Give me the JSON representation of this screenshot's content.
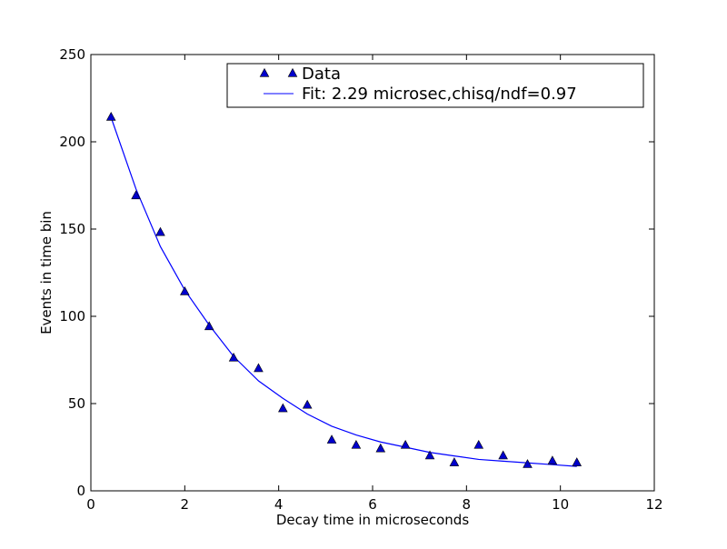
{
  "chart_data": {
    "type": "scatter",
    "title": "",
    "xlabel": "Decay time in microseconds",
    "ylabel": "Events in time bin",
    "xlim": [
      0,
      12
    ],
    "ylim": [
      0,
      250
    ],
    "xticks": [
      "0",
      "2",
      "4",
      "6",
      "8",
      "10",
      "12"
    ],
    "yticks": [
      "0",
      "50",
      "100",
      "150",
      "200",
      "250"
    ],
    "grid": false,
    "legend_position": "top-right",
    "series": [
      {
        "name": "Data",
        "kind": "markers",
        "marker": "triangle",
        "color": "#0000cc",
        "x": [
          0.43,
          0.96,
          1.48,
          2.0,
          2.52,
          3.04,
          3.57,
          4.09,
          4.61,
          5.13,
          5.65,
          6.17,
          6.7,
          7.22,
          7.74,
          8.26,
          8.78,
          9.3,
          9.83,
          10.35
        ],
        "y": [
          214,
          169,
          148,
          114,
          94,
          76,
          70,
          47,
          49,
          29,
          26,
          24,
          26,
          20,
          16,
          26,
          20,
          15,
          17,
          16
        ]
      },
      {
        "name": "Fit: 2.29 microsec,chisq/ndf=0.97",
        "kind": "line",
        "color": "#0000ff",
        "x": [
          0.43,
          0.96,
          1.48,
          2.0,
          2.52,
          3.04,
          3.57,
          4.09,
          4.61,
          5.13,
          5.65,
          6.17,
          6.7,
          7.22,
          7.74,
          8.26,
          8.78,
          9.3,
          9.83,
          10.35
        ],
        "y": [
          214,
          173,
          140,
          115,
          95,
          77,
          63,
          53,
          44,
          37,
          32,
          28,
          25,
          22,
          20,
          18,
          17,
          16,
          15,
          14
        ]
      }
    ]
  }
}
